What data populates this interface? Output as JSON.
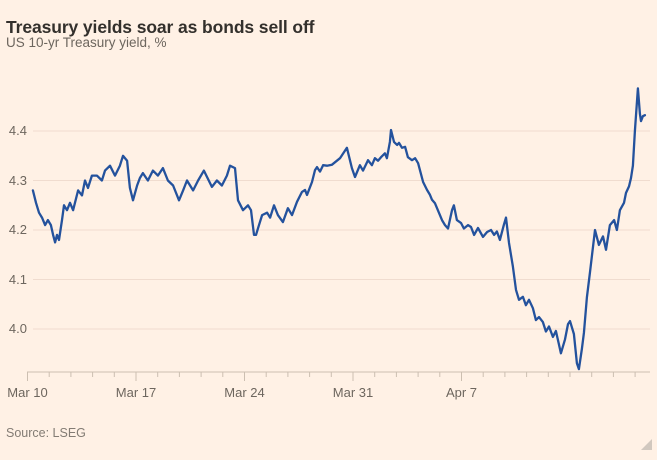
{
  "header": {
    "title": "Treasury yields soar as bonds sell off",
    "subtitle": "US 10-yr Treasury yield, %"
  },
  "footer": {
    "source": "Source: LSEG"
  },
  "colors": {
    "background": "#FFF1E5",
    "line": "#24529D",
    "grid": "#F0DCCF",
    "axis": "#CCBFB1",
    "title_text": "#33302C",
    "axis_text": "#6D665E",
    "source_text": "#837C74"
  },
  "chart_data": {
    "type": "line",
    "title": "Treasury yields soar as bonds sell off",
    "subtitle": "US 10-yr Treasury yield, %",
    "source": "Source: LSEG",
    "grid": true,
    "legend": "none",
    "x_axis": {
      "unit": "trading days since Mar 10",
      "range": [
        0,
        28.7
      ],
      "ticks": [
        {
          "d": 0,
          "label": "Mar 10"
        },
        {
          "d": 5,
          "label": "Mar 17"
        },
        {
          "d": 10,
          "label": "Mar 24"
        },
        {
          "d": 15,
          "label": "Mar 31"
        },
        {
          "d": 20,
          "label": "Apr 7"
        }
      ],
      "minor_tick_days": [
        1,
        2,
        3,
        4,
        6,
        7,
        8,
        9,
        11,
        12,
        13,
        14,
        16,
        17,
        18,
        19,
        21,
        22,
        23,
        24,
        25,
        26,
        27,
        28
      ]
    },
    "y_axis": {
      "label": "yield, %",
      "range": [
        3.91,
        4.5
      ],
      "ticks": [
        {
          "v": 4.0,
          "label": "4.0"
        },
        {
          "v": 4.1,
          "label": "4.1"
        },
        {
          "v": 4.2,
          "label": "4.2"
        },
        {
          "v": 4.3,
          "label": "4.3"
        },
        {
          "v": 4.4,
          "label": "4.4"
        }
      ]
    },
    "series": [
      {
        "name": "US 10-yr Treasury yield (%)",
        "color": "#24529D",
        "points": [
          [
            0.25,
            4.28
          ],
          [
            0.39,
            4.255
          ],
          [
            0.53,
            4.235
          ],
          [
            0.67,
            4.225
          ],
          [
            0.81,
            4.21
          ],
          [
            0.94,
            4.22
          ],
          [
            1.08,
            4.21
          ],
          [
            1.18,
            4.19
          ],
          [
            1.27,
            4.175
          ],
          [
            1.36,
            4.19
          ],
          [
            1.45,
            4.18
          ],
          [
            1.59,
            4.22
          ],
          [
            1.68,
            4.25
          ],
          [
            1.82,
            4.24
          ],
          [
            1.96,
            4.255
          ],
          [
            2.1,
            4.24
          ],
          [
            2.33,
            4.28
          ],
          [
            2.51,
            4.27
          ],
          [
            2.65,
            4.3
          ],
          [
            2.79,
            4.285
          ],
          [
            2.97,
            4.31
          ],
          [
            3.2,
            4.31
          ],
          [
            3.43,
            4.3
          ],
          [
            3.57,
            4.32
          ],
          [
            3.8,
            4.33
          ],
          [
            4.03,
            4.31
          ],
          [
            4.26,
            4.33
          ],
          [
            4.4,
            4.35
          ],
          [
            4.59,
            4.34
          ],
          [
            4.72,
            4.285
          ],
          [
            4.86,
            4.26
          ],
          [
            5.05,
            4.29
          ],
          [
            5.18,
            4.305
          ],
          [
            5.32,
            4.315
          ],
          [
            5.55,
            4.3
          ],
          [
            5.78,
            4.32
          ],
          [
            6.01,
            4.31
          ],
          [
            6.24,
            4.325
          ],
          [
            6.47,
            4.3
          ],
          [
            6.71,
            4.29
          ],
          [
            6.98,
            4.26
          ],
          [
            7.17,
            4.28
          ],
          [
            7.35,
            4.3
          ],
          [
            7.63,
            4.28
          ],
          [
            7.86,
            4.3
          ],
          [
            8.13,
            4.32
          ],
          [
            8.5,
            4.287
          ],
          [
            8.73,
            4.3
          ],
          [
            8.96,
            4.29
          ],
          [
            9.19,
            4.31
          ],
          [
            9.33,
            4.33
          ],
          [
            9.56,
            4.325
          ],
          [
            9.7,
            4.26
          ],
          [
            9.93,
            4.24
          ],
          [
            10.16,
            4.25
          ],
          [
            10.3,
            4.24
          ],
          [
            10.44,
            4.19
          ],
          [
            10.53,
            4.19
          ],
          [
            10.67,
            4.21
          ],
          [
            10.81,
            4.23
          ],
          [
            11.04,
            4.235
          ],
          [
            11.18,
            4.225
          ],
          [
            11.36,
            4.25
          ],
          [
            11.54,
            4.23
          ],
          [
            11.77,
            4.216
          ],
          [
            12.0,
            4.244
          ],
          [
            12.19,
            4.23
          ],
          [
            12.42,
            4.257
          ],
          [
            12.65,
            4.277
          ],
          [
            12.79,
            4.281
          ],
          [
            12.88,
            4.271
          ],
          [
            13.11,
            4.297
          ],
          [
            13.25,
            4.321
          ],
          [
            13.34,
            4.327
          ],
          [
            13.48,
            4.318
          ],
          [
            13.62,
            4.331
          ],
          [
            13.8,
            4.33
          ],
          [
            14.03,
            4.332
          ],
          [
            14.4,
            4.345
          ],
          [
            14.72,
            4.366
          ],
          [
            14.95,
            4.325
          ],
          [
            15.09,
            4.307
          ],
          [
            15.32,
            4.331
          ],
          [
            15.46,
            4.32
          ],
          [
            15.69,
            4.341
          ],
          [
            15.87,
            4.331
          ],
          [
            16.01,
            4.345
          ],
          [
            16.15,
            4.34
          ],
          [
            16.29,
            4.347
          ],
          [
            16.47,
            4.355
          ],
          [
            16.56,
            4.345
          ],
          [
            16.7,
            4.378
          ],
          [
            16.75,
            4.402
          ],
          [
            16.89,
            4.378
          ],
          [
            17.03,
            4.372
          ],
          [
            17.12,
            4.376
          ],
          [
            17.26,
            4.366
          ],
          [
            17.4,
            4.368
          ],
          [
            17.53,
            4.347
          ],
          [
            17.72,
            4.341
          ],
          [
            17.86,
            4.345
          ],
          [
            18.0,
            4.335
          ],
          [
            18.23,
            4.297
          ],
          [
            18.41,
            4.281
          ],
          [
            18.55,
            4.271
          ],
          [
            18.64,
            4.261
          ],
          [
            18.78,
            4.254
          ],
          [
            19.1,
            4.22
          ],
          [
            19.24,
            4.21
          ],
          [
            19.38,
            4.203
          ],
          [
            19.56,
            4.24
          ],
          [
            19.65,
            4.25
          ],
          [
            19.79,
            4.22
          ],
          [
            19.98,
            4.214
          ],
          [
            20.11,
            4.203
          ],
          [
            20.3,
            4.21
          ],
          [
            20.44,
            4.206
          ],
          [
            20.58,
            4.19
          ],
          [
            20.76,
            4.204
          ],
          [
            20.99,
            4.186
          ],
          [
            21.18,
            4.196
          ],
          [
            21.36,
            4.2
          ],
          [
            21.5,
            4.19
          ],
          [
            21.63,
            4.197
          ],
          [
            21.77,
            4.18
          ],
          [
            21.95,
            4.21
          ],
          [
            22.05,
            4.225
          ],
          [
            22.19,
            4.174
          ],
          [
            22.37,
            4.126
          ],
          [
            22.51,
            4.079
          ],
          [
            22.65,
            4.059
          ],
          [
            22.83,
            4.065
          ],
          [
            22.97,
            4.048
          ],
          [
            23.11,
            4.059
          ],
          [
            23.29,
            4.042
          ],
          [
            23.43,
            4.018
          ],
          [
            23.57,
            4.024
          ],
          [
            23.75,
            4.014
          ],
          [
            23.89,
            3.995
          ],
          [
            24.03,
            4.005
          ],
          [
            24.21,
            3.984
          ],
          [
            24.35,
            3.996
          ],
          [
            24.49,
            3.969
          ],
          [
            24.58,
            3.951
          ],
          [
            24.77,
            3.979
          ],
          [
            24.91,
            4.01
          ],
          [
            25.0,
            4.016
          ],
          [
            25.18,
            3.99
          ],
          [
            25.32,
            3.931
          ],
          [
            25.41,
            3.919
          ],
          [
            25.55,
            3.96
          ],
          [
            25.64,
            3.992
          ],
          [
            25.78,
            4.064
          ],
          [
            25.92,
            4.115
          ],
          [
            26.15,
            4.2
          ],
          [
            26.33,
            4.17
          ],
          [
            26.52,
            4.187
          ],
          [
            26.66,
            4.16
          ],
          [
            26.84,
            4.21
          ],
          [
            27.03,
            4.22
          ],
          [
            27.16,
            4.2
          ],
          [
            27.3,
            4.24
          ],
          [
            27.49,
            4.255
          ],
          [
            27.58,
            4.275
          ],
          [
            27.72,
            4.288
          ],
          [
            27.81,
            4.305
          ],
          [
            27.9,
            4.33
          ],
          [
            27.99,
            4.4
          ],
          [
            28.13,
            4.486
          ],
          [
            28.22,
            4.435
          ],
          [
            28.27,
            4.42
          ],
          [
            28.36,
            4.43
          ],
          [
            28.45,
            4.432
          ]
        ]
      }
    ]
  }
}
